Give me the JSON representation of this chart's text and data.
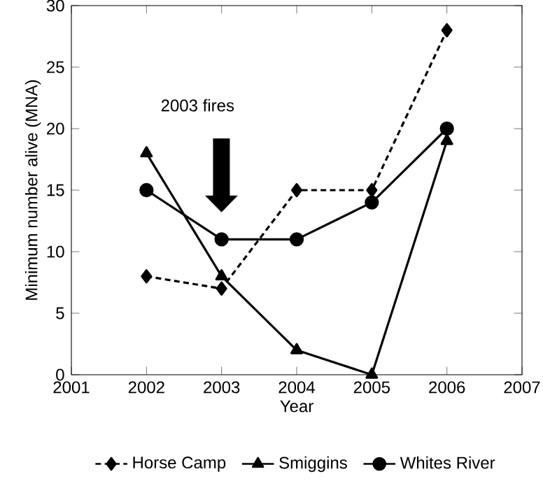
{
  "chart_data": {
    "type": "line",
    "xlabel": "Year",
    "ylabel": "Minimum number alive (MNA)",
    "x": [
      2002,
      2003,
      2004,
      2005,
      2006
    ],
    "series": [
      {
        "name": "Horse Camp",
        "color": "#000000",
        "marker": "diamond",
        "line_style": "dashed",
        "values": [
          8,
          7,
          15,
          15,
          28
        ]
      },
      {
        "name": "Smiggins",
        "color": "#000000",
        "marker": "triangle",
        "line_style": "solid",
        "values": [
          18,
          8,
          2,
          0,
          19
        ]
      },
      {
        "name": "Whites River",
        "color": "#000000",
        "marker": "circle",
        "line_style": "solid",
        "values": [
          15,
          11,
          11,
          14,
          20
        ]
      }
    ],
    "xlim": [
      2001,
      2007
    ],
    "xticks": [
      2001,
      2002,
      2003,
      2004,
      2005,
      2006,
      2007
    ],
    "ylim": [
      0,
      30
    ],
    "yticks": [
      0,
      5,
      10,
      15,
      20,
      25,
      30
    ],
    "annotations": [
      "2003 fires"
    ],
    "legend": "bottom",
    "grid": false
  }
}
